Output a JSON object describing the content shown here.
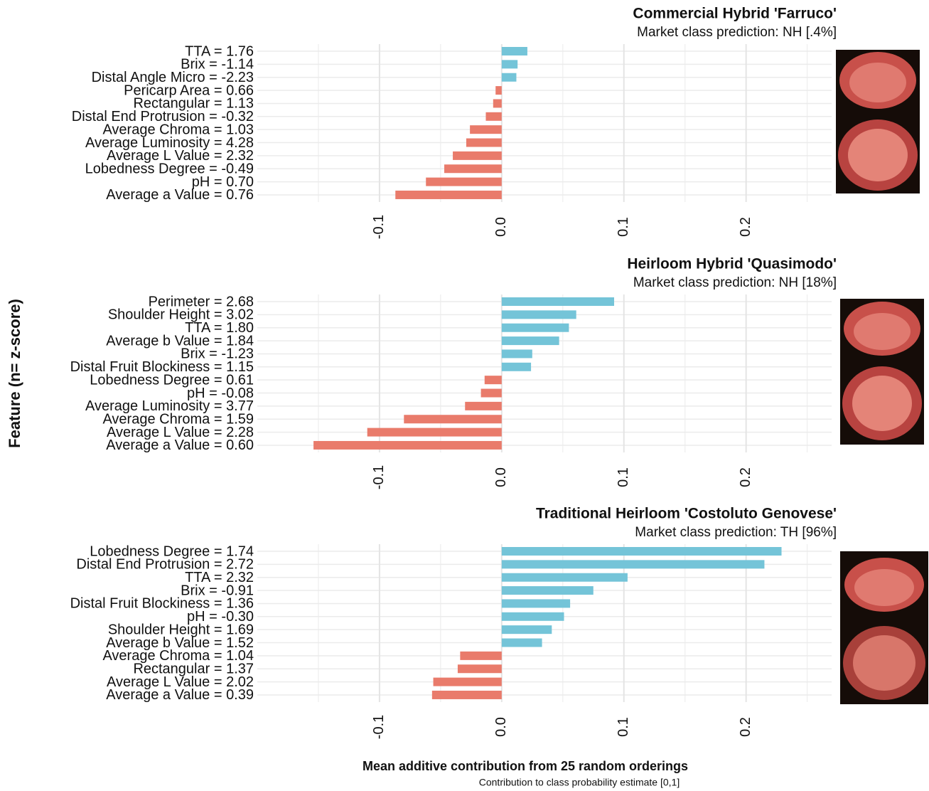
{
  "axis_titles": {
    "ylabel": "Feature (n= z-score)",
    "xlabel": "Mean additive contribution from 25 random orderings",
    "xsublabel": "Contribution to class probability estimate [0,1]"
  },
  "chart_data": [
    {
      "type": "bar",
      "orientation": "horizontal",
      "title": "Commercial Hybrid 'Farruco'",
      "subtitle": "Market class prediction: NH [.4%]",
      "categories": [
        "TTA = 1.76",
        "Brix = -1.14",
        "Distal Angle Micro = -2.23",
        "Pericarp Area = 0.66",
        "Rectangular = 1.13",
        "Distal End Protrusion = -0.32",
        "Average Chroma = 1.03",
        "Average Luminosity = 4.28",
        "Average L Value = 2.32",
        "Lobedness Degree = -0.49",
        "pH = 0.70",
        "Average a Value = 0.76"
      ],
      "values": [
        0.021,
        0.013,
        0.012,
        -0.005,
        -0.007,
        -0.013,
        -0.026,
        -0.029,
        -0.04,
        -0.047,
        -0.062,
        -0.087
      ],
      "positive_color": "#74c4d8",
      "negative_color": "#e97b6b",
      "xlim": [
        -0.2,
        0.27
      ],
      "xticks": [
        -0.1,
        {
          "value": 0,
          "label": "0.0"
        },
        0.1,
        0.2
      ],
      "minor_gridlines": [
        -0.15,
        -0.05,
        0.05,
        0.15,
        0.25
      ],
      "grid": true
    },
    {
      "type": "bar",
      "orientation": "horizontal",
      "title": "Heirloom Hybrid 'Quasimodo'",
      "subtitle": "Market class prediction: NH [18%]",
      "categories": [
        "Perimeter = 2.68",
        "Shoulder Height = 3.02",
        "TTA = 1.80",
        "Average b Value = 1.84",
        "Brix = -1.23",
        "Distal Fruit Blockiness = 1.15",
        "Lobedness Degree = 0.61",
        "pH = -0.08",
        "Average Luminosity = 3.77",
        "Average Chroma = 1.59",
        "Average L Value = 2.28",
        "Average a Value = 0.60"
      ],
      "values": [
        0.092,
        0.061,
        0.055,
        0.047,
        0.025,
        0.024,
        -0.014,
        -0.017,
        -0.03,
        -0.08,
        -0.11,
        -0.154
      ],
      "positive_color": "#74c4d8",
      "negative_color": "#e97b6b",
      "xlim": [
        -0.2,
        0.27
      ],
      "xticks": [
        -0.1,
        {
          "value": 0,
          "label": "0.0"
        },
        0.1,
        0.2
      ],
      "minor_gridlines": [
        -0.15,
        -0.05,
        0.05,
        0.15,
        0.25
      ],
      "grid": true
    },
    {
      "type": "bar",
      "orientation": "horizontal",
      "title": "Traditional Heirloom  'Costoluto Genovese'",
      "subtitle": "Market class prediction: TH [96%]",
      "categories": [
        "Lobedness Degree = 1.74",
        "Distal End Protrusion = 2.72",
        "TTA = 2.32",
        "Brix = -0.91",
        "Distal Fruit Blockiness = 1.36",
        "pH = -0.30",
        "Shoulder Height = 1.69",
        "Average b Value = 1.52",
        "Average Chroma = 1.04",
        "Rectangular = 1.37",
        "Average L Value = 2.02",
        "Average a Value = 0.39"
      ],
      "values": [
        0.229,
        0.215,
        0.103,
        0.075,
        0.056,
        0.051,
        0.041,
        0.033,
        -0.034,
        -0.036,
        -0.056,
        -0.057
      ],
      "positive_color": "#74c4d8",
      "negative_color": "#e97b6b",
      "xlim": [
        -0.2,
        0.27
      ],
      "xticks": [
        -0.1,
        {
          "value": 0,
          "label": "0.0"
        },
        0.1,
        0.2
      ],
      "minor_gridlines": [
        -0.15,
        -0.05,
        0.05,
        0.15,
        0.25
      ],
      "grid": true
    }
  ]
}
